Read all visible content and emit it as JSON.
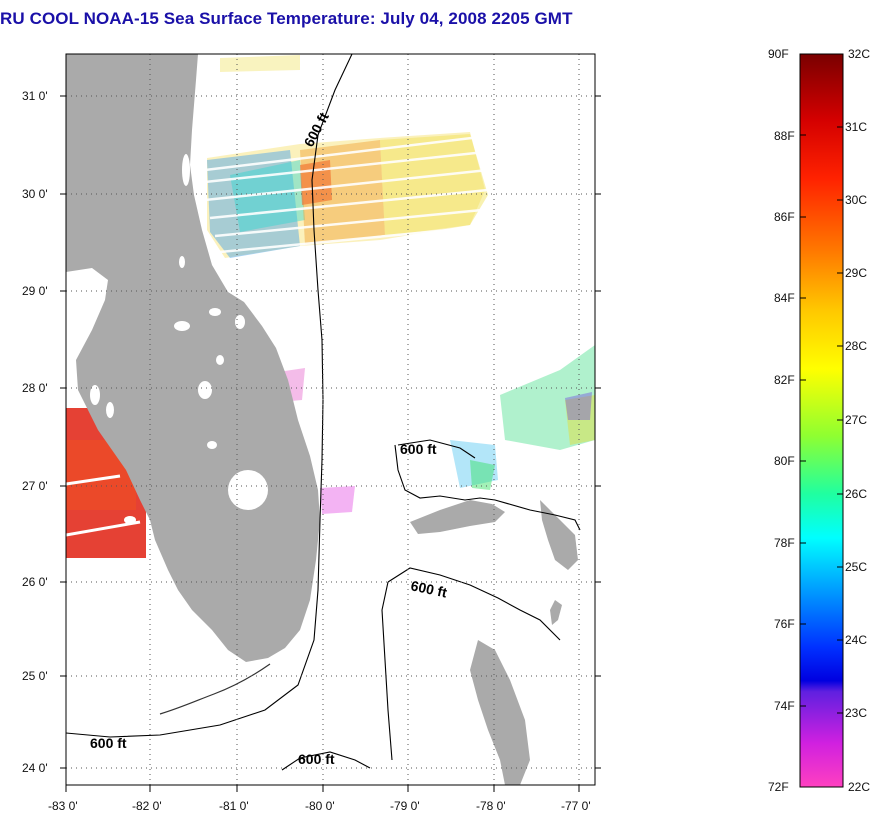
{
  "title": "RU COOL  NOAA-15  Sea Surface Temperature:  July 04, 2008 2205 GMT",
  "map": {
    "lat_ticks": [
      "31 0'",
      "30 0'",
      "29 0'",
      "28 0'",
      "27 0'",
      "26 0'",
      "25 0'",
      "24 0'"
    ],
    "lon_ticks": [
      "-83 0'",
      "-82 0'",
      "-81 0'",
      "-80 0'",
      "-79 0'",
      "-78 0'",
      "-77 0'"
    ],
    "contour_labels": [
      "600 ft",
      "600 ft",
      "600 ft",
      "600 ft",
      "600 ft"
    ],
    "colors": {
      "land": "#aaaaaa",
      "grid": "#555555"
    }
  },
  "colorbar": {
    "fahrenheit": [
      "90F",
      "88F",
      "86F",
      "84F",
      "82F",
      "80F",
      "78F",
      "76F",
      "74F",
      "72F"
    ],
    "celsius": [
      "32C",
      "31C",
      "30C",
      "29C",
      "28C",
      "27C",
      "26C",
      "25C",
      "24C",
      "23C",
      "22C"
    ]
  }
}
